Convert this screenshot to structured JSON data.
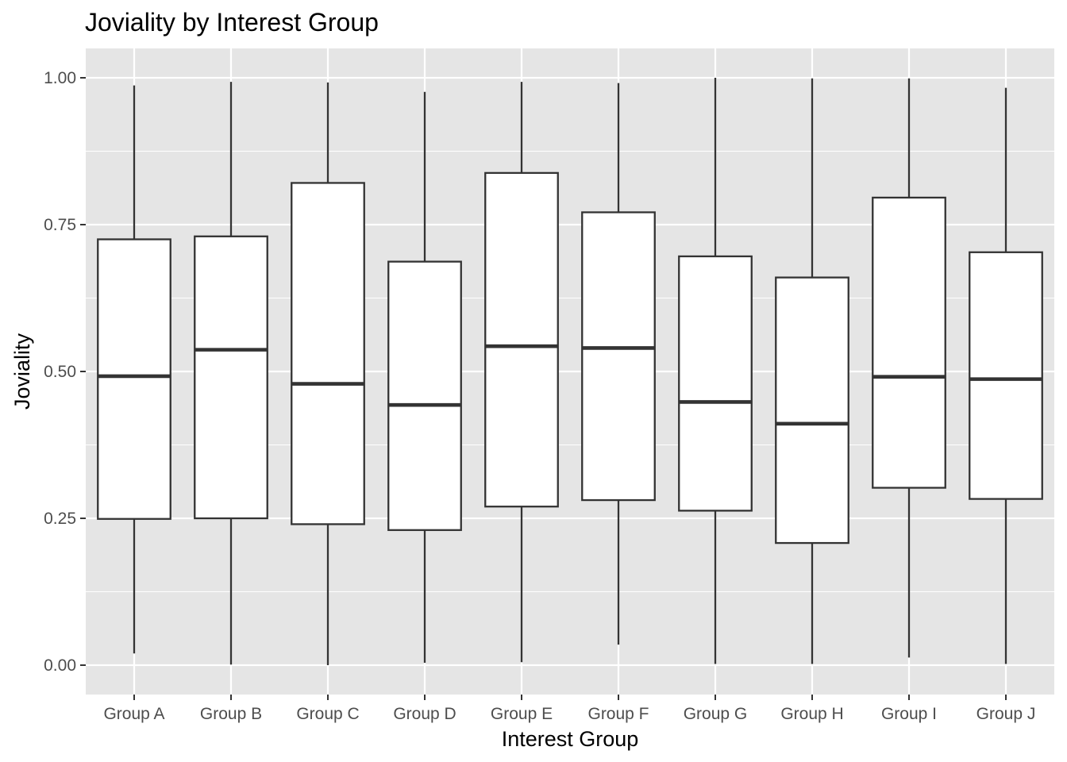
{
  "chart_data": {
    "type": "boxplot",
    "title": "Joviality by Interest Group",
    "xlabel": "Interest Group",
    "ylabel": "Joviality",
    "ylim": [
      -0.05,
      1.05
    ],
    "y_ticks": [
      "0.00",
      "0.25",
      "0.50",
      "0.75",
      "1.00"
    ],
    "y_tick_values": [
      0,
      0.25,
      0.5,
      0.75,
      1.0
    ],
    "grid": true,
    "legend": "none",
    "colors": {
      "panel_background": "#e5e5e5",
      "grid": "#ffffff",
      "box_fill": "#ffffff",
      "box_line": "#333333"
    },
    "categories": [
      "Group A",
      "Group B",
      "Group C",
      "Group D",
      "Group E",
      "Group F",
      "Group G",
      "Group H",
      "Group I",
      "Group J"
    ],
    "boxes": [
      {
        "category": "Group A",
        "min": 0.02,
        "q1": 0.249,
        "median": 0.492,
        "q3": 0.725,
        "max": 0.987
      },
      {
        "category": "Group B",
        "min": 0.001,
        "q1": 0.25,
        "median": 0.537,
        "q3": 0.73,
        "max": 0.993
      },
      {
        "category": "Group C",
        "min": 0.0,
        "q1": 0.24,
        "median": 0.479,
        "q3": 0.821,
        "max": 0.992
      },
      {
        "category": "Group D",
        "min": 0.004,
        "q1": 0.23,
        "median": 0.443,
        "q3": 0.687,
        "max": 0.976
      },
      {
        "category": "Group E",
        "min": 0.005,
        "q1": 0.27,
        "median": 0.543,
        "q3": 0.838,
        "max": 0.993
      },
      {
        "category": "Group F",
        "min": 0.035,
        "q1": 0.281,
        "median": 0.54,
        "q3": 0.771,
        "max": 0.991
      },
      {
        "category": "Group G",
        "min": 0.002,
        "q1": 0.263,
        "median": 0.448,
        "q3": 0.696,
        "max": 1.0
      },
      {
        "category": "Group H",
        "min": 0.002,
        "q1": 0.208,
        "median": 0.411,
        "q3": 0.66,
        "max": 0.999
      },
      {
        "category": "Group I",
        "min": 0.013,
        "q1": 0.302,
        "median": 0.491,
        "q3": 0.796,
        "max": 0.999
      },
      {
        "category": "Group J",
        "min": 0.002,
        "q1": 0.283,
        "median": 0.487,
        "q3": 0.703,
        "max": 0.983
      }
    ]
  }
}
